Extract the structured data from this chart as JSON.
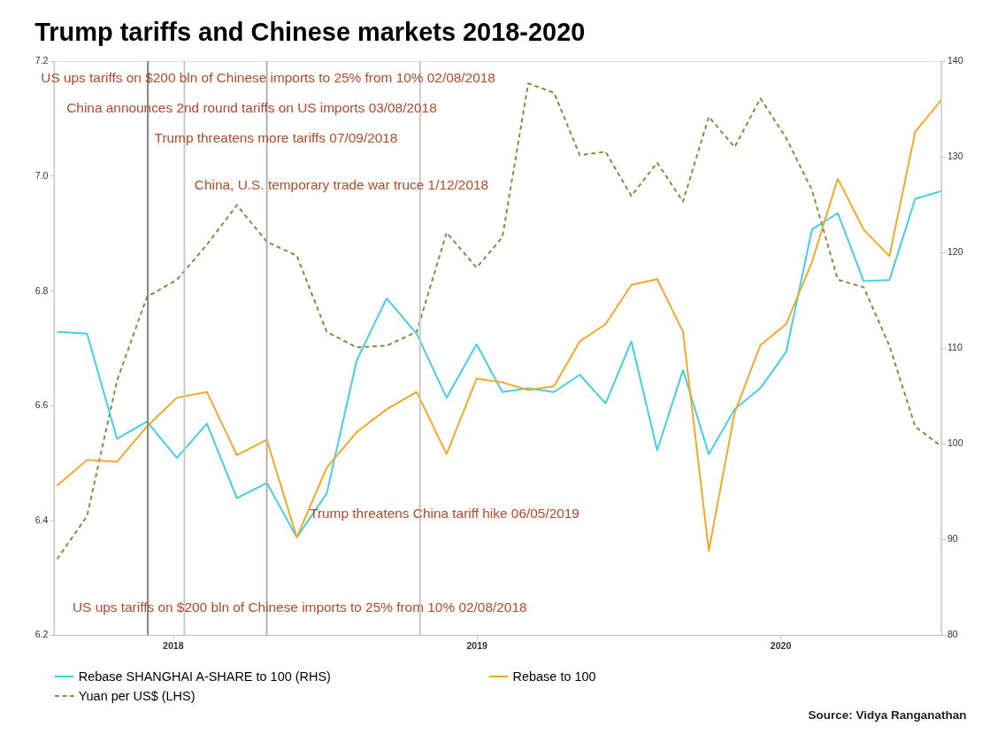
{
  "chart_data": {
    "type": "line",
    "title": "Trump tariffs and Chinese markets 2018-2020",
    "x": [
      "2017-08-15",
      "2017-09-20",
      "2017-10-26",
      "2017-12-01",
      "2018-01-06",
      "2018-02-11",
      "2018-03-19",
      "2018-04-24",
      "2018-05-30",
      "2018-07-05",
      "2018-08-10",
      "2018-09-15",
      "2018-10-21",
      "2018-11-26",
      "2019-01-01",
      "2019-02-01",
      "2019-03-04",
      "2019-04-04",
      "2019-05-05",
      "2019-06-05",
      "2019-07-06",
      "2019-08-06",
      "2019-09-06",
      "2019-10-07",
      "2019-11-07",
      "2019-12-08",
      "2020-01-08",
      "2020-02-08",
      "2020-03-10",
      "2020-04-10",
      "2020-05-11",
      "2020-06-11",
      "2020-07-12"
    ],
    "xlim": [
      "2017-08-11",
      "2020-07-12"
    ],
    "xticks": [
      "2018",
      "2019",
      "2020"
    ],
    "ylim": [
      6.2,
      7.2
    ],
    "yticks": [
      6.2,
      6.4,
      6.6,
      6.8,
      {
        "value": 7.0,
        "label": "7.0"
      },
      7.2
    ],
    "y2lim": [
      80,
      140
    ],
    "y2ticks": [
      80,
      90,
      100,
      110,
      120,
      130,
      140
    ],
    "series": [
      {
        "name": "Rebase SHANGHAI A-SHARE to 100 (RHS)",
        "color": "#3fcfe3",
        "axis": "y2",
        "line_style": "solid",
        "values": [
          111.7,
          111.5,
          100.5,
          102.3,
          98.5,
          102.1,
          94.3,
          95.9,
          90.2,
          94.8,
          108.7,
          115.2,
          111.5,
          104.8,
          110.4,
          105.4,
          105.8,
          105.4,
          107.2,
          104.2,
          110.7,
          99.3,
          107.7,
          98.9,
          103.6,
          105.8,
          109.6,
          122.4,
          124.1,
          117.0,
          117.1,
          125.6,
          126.4
        ]
      },
      {
        "name": "Rebase to 100",
        "color": "#f5a623",
        "axis": "y2",
        "line_style": "solid",
        "values": [
          95.6,
          98.3,
          98.1,
          101.8,
          104.8,
          105.4,
          98.8,
          100.4,
          90.2,
          97.5,
          101.2,
          103.6,
          105.4,
          98.9,
          106.8,
          106.4,
          105.6,
          106.0,
          110.7,
          112.5,
          116.6,
          117.2,
          111.7,
          88.8,
          103.2,
          110.3,
          112.5,
          119.0,
          127.7,
          122.4,
          119.6,
          132.6,
          135.9
        ]
      },
      {
        "name": "Yuan per US$ (LHS)",
        "color": "#7d8c3c",
        "axis": "y",
        "line_style": "dashed",
        "values": [
          6.332,
          6.407,
          6.643,
          6.789,
          6.819,
          6.88,
          6.949,
          6.885,
          6.861,
          6.728,
          6.701,
          6.704,
          6.728,
          6.901,
          6.84,
          6.893,
          7.161,
          7.145,
          7.036,
          7.042,
          6.965,
          7.023,
          6.955,
          7.103,
          7.05,
          7.135,
          7.066,
          6.975,
          6.819,
          6.806,
          6.704,
          6.563,
          6.529
        ]
      }
    ],
    "ref_lines": [
      {
        "axis": "x",
        "value": "2017-12-02",
        "color": "#808080"
      },
      {
        "axis": "x",
        "value": "2018-01-15",
        "color": "#c8c8c8"
      },
      {
        "axis": "x",
        "value": "2018-04-24",
        "color": "#b0b0b0"
      },
      {
        "axis": "x",
        "value": "2018-10-25",
        "color": "#c8c8c8"
      }
    ],
    "annotations": [
      "US ups tariffs on $200 bln of Chinese imports to 25% from 10% 02/08/2018",
      "China announces 2nd round tariffs on US imports 03/08/2018",
      "Trump threatens more tariffs 07/09/2018",
      "China, U.S. temporary trade war truce 1/12/2018",
      "Trump threatens China tariff hike 06/05/2019",
      "US ups tariffs on $200 bln of Chinese imports to 25% from 10% 02/08/2018",
      "Source: Vidya Ranganathan"
    ],
    "legend": "bottom",
    "grid": false
  }
}
